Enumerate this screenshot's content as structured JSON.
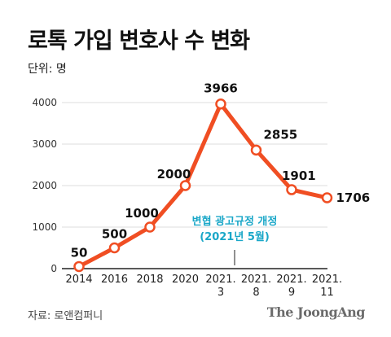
{
  "title": "로톡 가입 변호사 수 변화",
  "unit_label": "단위: 명",
  "source": "자료: 로앤컴퍼니",
  "brand": "The JoongAng",
  "colors": {
    "line": "#f04e23",
    "annotation": "#1aa7c8",
    "grid": "#dddddd",
    "axis": "#222222"
  },
  "chart_data": {
    "type": "line",
    "categories": [
      "2014",
      "2016",
      "2018",
      "2020",
      "2021. 3",
      "2021. 8",
      "2021. 9",
      "2021. 11"
    ],
    "category_lines": [
      [
        "2014"
      ],
      [
        "2016"
      ],
      [
        "2018"
      ],
      [
        "2020"
      ],
      [
        "2021.",
        "3"
      ],
      [
        "2021.",
        "8"
      ],
      [
        "2021.",
        "9"
      ],
      [
        "2021.",
        "11"
      ]
    ],
    "series": [
      {
        "values": [
          50,
          500,
          1000,
          2000,
          3966,
          2855,
          1901,
          1706
        ]
      }
    ],
    "data_labels": [
      "50",
      "500",
      "1000",
      "2000",
      "3966",
      "2855",
      "1901",
      "1706"
    ],
    "y_ticks": [
      0,
      1000,
      2000,
      3000,
      4000
    ],
    "y_tick_labels": [
      "0",
      "1000",
      "2000",
      "3000",
      "4000"
    ],
    "ylim": [
      0,
      4000
    ],
    "grid": true,
    "annotation": {
      "at_category": "2021. 3",
      "lines": [
        "변협 광고규정 개정",
        "(2021년 5월)"
      ]
    }
  }
}
